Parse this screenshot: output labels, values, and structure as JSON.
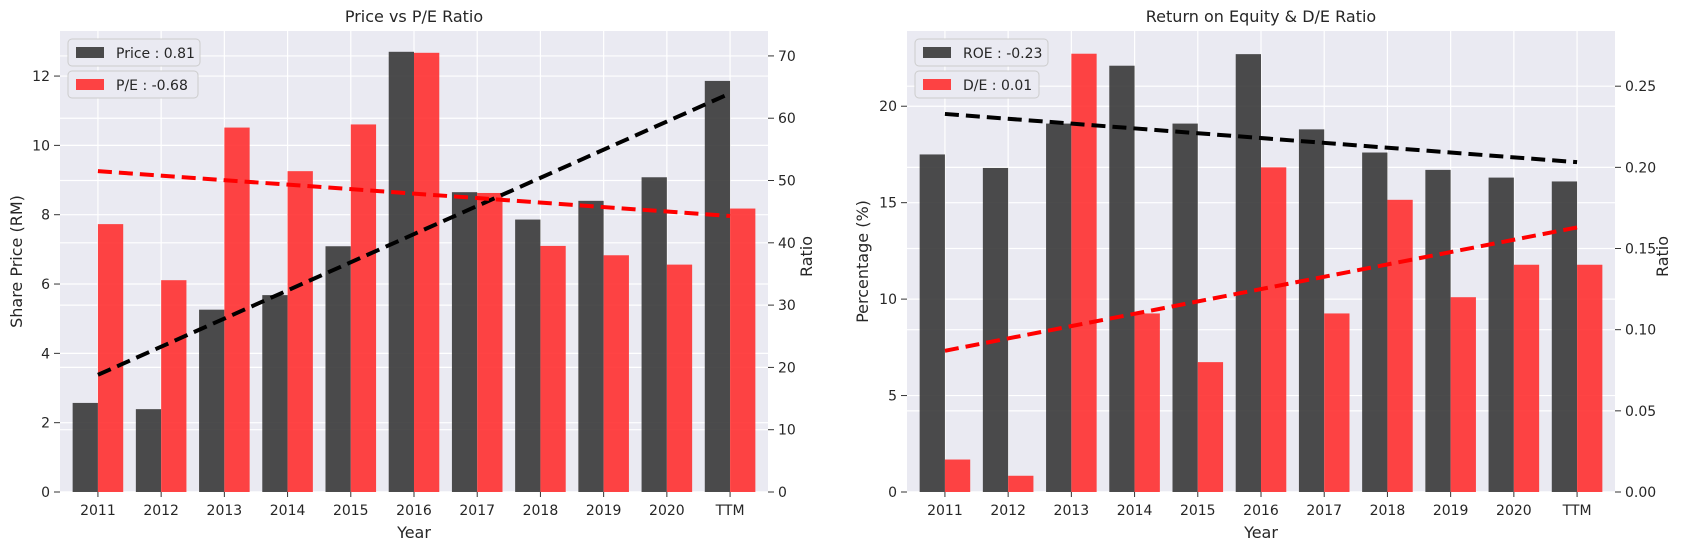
{
  "chart_data": [
    {
      "type": "bar",
      "title": "Price vs P/E Ratio",
      "xlabel": "Year",
      "ylabel": "Share Price (RM)",
      "y2label": "Ratio",
      "categories": [
        "2011",
        "2012",
        "2013",
        "2014",
        "2015",
        "2016",
        "2017",
        "2018",
        "2019",
        "2020",
        "TTM"
      ],
      "ylim": [
        0,
        13.3
      ],
      "y2lim": [
        0,
        74
      ],
      "yticks": [
        0,
        2,
        4,
        6,
        8,
        10,
        12
      ],
      "y2ticks": [
        0,
        10,
        20,
        30,
        40,
        50,
        60,
        70
      ],
      "grid": true,
      "legend_position": "top-left",
      "series": [
        {
          "name": "Price : 0.81",
          "axis": "left",
          "color": "#333333",
          "values": [
            2.57,
            2.39,
            5.26,
            5.68,
            7.09,
            12.7,
            8.65,
            7.86,
            8.4,
            9.08,
            11.86
          ],
          "trend": [
            3.38,
            11.5
          ]
        },
        {
          "name": "P/E : -0.68",
          "axis": "right",
          "color": "#ff2a2a",
          "values": [
            43,
            34,
            58.5,
            51.5,
            59,
            70.5,
            48,
            39.5,
            38,
            36.5,
            45.5
          ],
          "trend": [
            51.5,
            44.3
          ]
        }
      ]
    },
    {
      "type": "bar",
      "title": "Return on Equity & D/E Ratio",
      "xlabel": "Year",
      "ylabel": "Percentage (%)",
      "y2label": "Ratio",
      "categories": [
        "2011",
        "2012",
        "2013",
        "2014",
        "2015",
        "2016",
        "2017",
        "2018",
        "2019",
        "2020",
        "TTM"
      ],
      "ylim": [
        0,
        23.9
      ],
      "y2lim": [
        0,
        0.284
      ],
      "yticks": [
        0,
        5,
        10,
        15,
        20
      ],
      "y2ticks": [
        "0.00",
        "0.05",
        "0.10",
        "0.15",
        "0.20",
        "0.25"
      ],
      "grid": true,
      "legend_position": "top-left",
      "series": [
        {
          "name": "ROE : -0.23",
          "axis": "left",
          "color": "#333333",
          "values": [
            17.5,
            16.8,
            19.1,
            22.1,
            19.1,
            22.7,
            18.8,
            17.6,
            16.7,
            16.3,
            16.1
          ],
          "trend": [
            19.6,
            17.1
          ]
        },
        {
          "name": "D/E : 0.01",
          "axis": "right",
          "color": "#ff2a2a",
          "values": [
            0.02,
            0.01,
            0.27,
            0.11,
            0.08,
            0.2,
            0.11,
            0.18,
            0.12,
            0.14,
            0.14
          ],
          "trend": [
            0.087,
            0.163
          ]
        }
      ]
    }
  ]
}
